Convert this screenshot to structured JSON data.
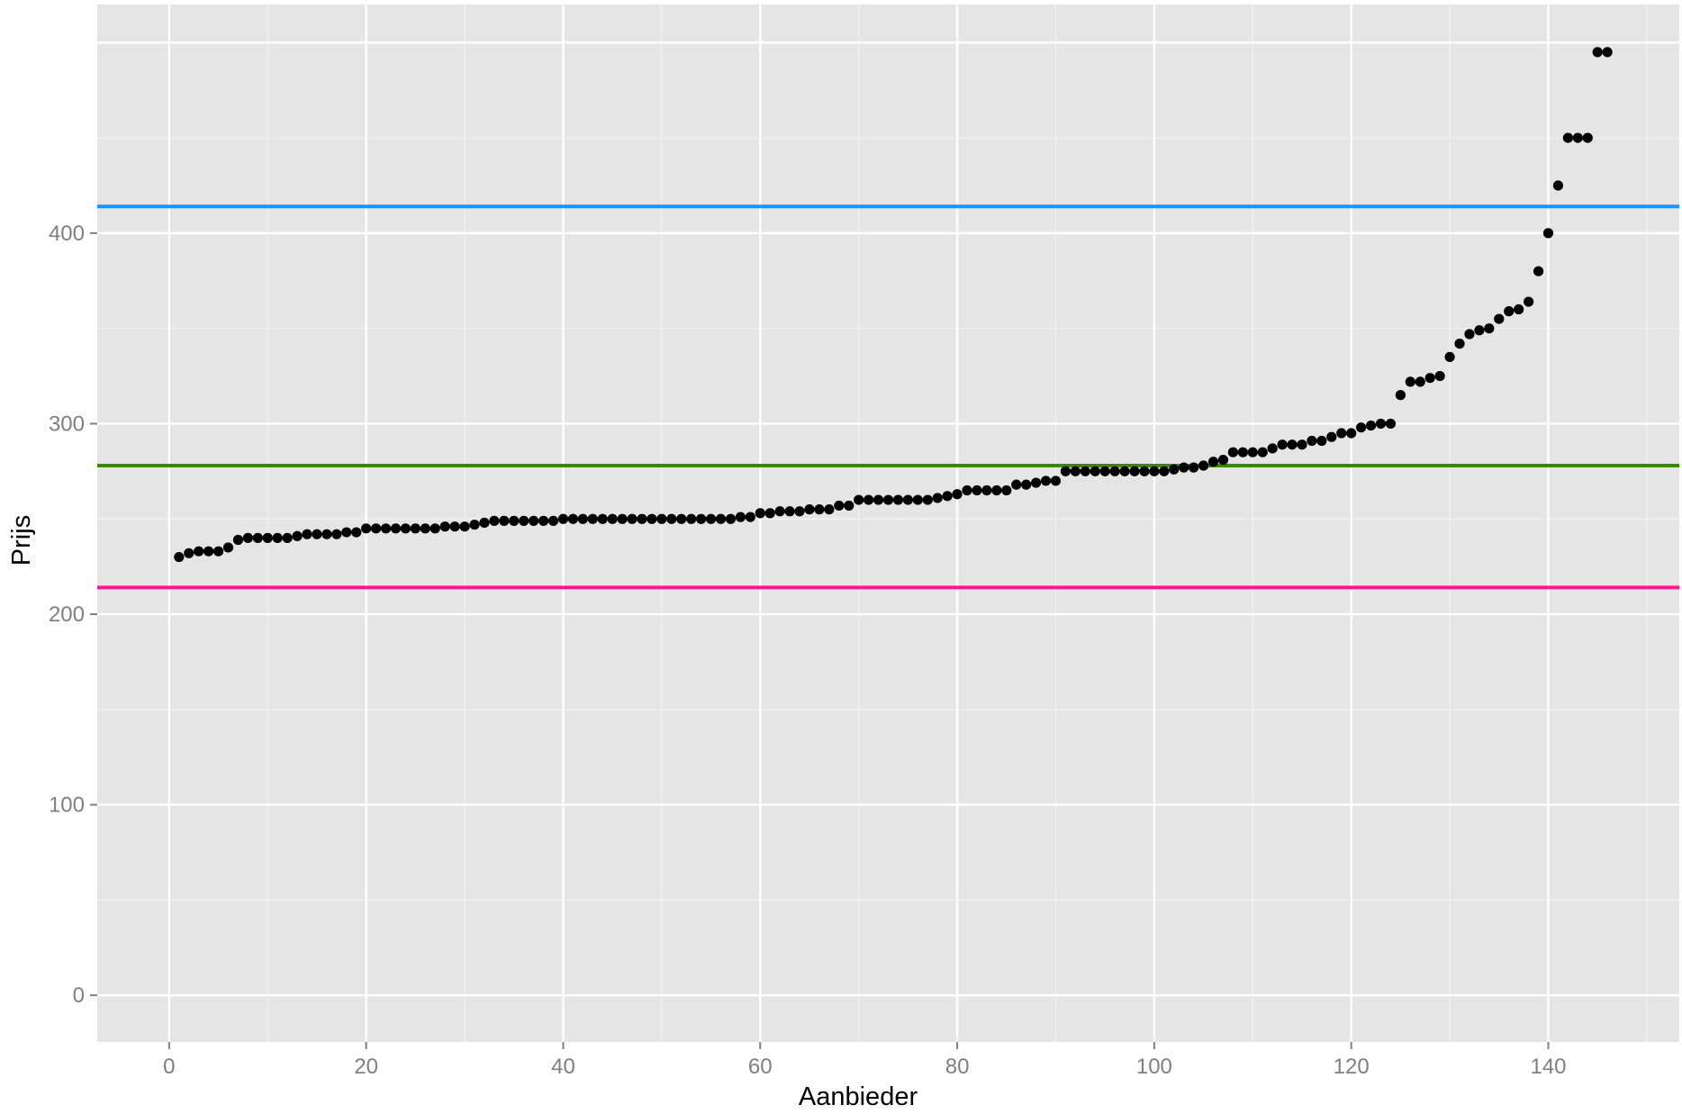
{
  "chart_data": {
    "type": "scatter",
    "title": "",
    "xlabel": "Aanbieder",
    "ylabel": "Prijs",
    "xlim": [
      -7.3,
      153.3
    ],
    "ylim": [
      -24.5,
      520
    ],
    "x_ticks": [
      0,
      20,
      40,
      60,
      80,
      100,
      120,
      140
    ],
    "y_ticks": [
      0,
      100,
      200,
      300,
      400
    ],
    "grid": true,
    "legend": "none",
    "colors": {
      "panel": "#e5e5e5",
      "grid_major": "#ffffff",
      "grid_minor": "#f2f2f2",
      "points": "#000000"
    },
    "hlines": [
      {
        "y": 414,
        "color": "#1e90ff"
      },
      {
        "y": 278,
        "color": "#3a8a00"
      },
      {
        "y": 214,
        "color": "#ff1493"
      }
    ],
    "series": [
      {
        "x": [
          1,
          2,
          3,
          4,
          5,
          6,
          7,
          8,
          9,
          10,
          11,
          12,
          13,
          14,
          15,
          16,
          17,
          18,
          19,
          20,
          21,
          22,
          23,
          24,
          25,
          26,
          27,
          28,
          29,
          30,
          31,
          32,
          33,
          34,
          35,
          36,
          37,
          38,
          39,
          40,
          41,
          42,
          43,
          44,
          45,
          46,
          47,
          48,
          49,
          50,
          51,
          52,
          53,
          54,
          55,
          56,
          57,
          58,
          59,
          60,
          61,
          62,
          63,
          64,
          65,
          66,
          67,
          68,
          69,
          70,
          71,
          72,
          73,
          74,
          75,
          76,
          77,
          78,
          79,
          80,
          81,
          82,
          83,
          84,
          85,
          86,
          87,
          88,
          89,
          90,
          91,
          92,
          93,
          94,
          95,
          96,
          97,
          98,
          99,
          100,
          101,
          102,
          103,
          104,
          105,
          106,
          107,
          108,
          109,
          110,
          111,
          112,
          113,
          114,
          115,
          116,
          117,
          118,
          119,
          120,
          121,
          122,
          123,
          124,
          125,
          126,
          127,
          128,
          129,
          130,
          131,
          132,
          133,
          134,
          135,
          136,
          137,
          138,
          139,
          140,
          141,
          142,
          143,
          144,
          145,
          146
        ],
        "y": [
          230,
          232,
          233,
          233,
          233,
          235,
          239,
          240,
          240,
          240,
          240,
          240,
          241,
          242,
          242,
          242,
          242,
          243,
          243,
          245,
          245,
          245,
          245,
          245,
          245,
          245,
          245,
          246,
          246,
          246,
          247,
          248,
          249,
          249,
          249,
          249,
          249,
          249,
          249,
          250,
          250,
          250,
          250,
          250,
          250,
          250,
          250,
          250,
          250,
          250,
          250,
          250,
          250,
          250,
          250,
          250,
          250,
          251,
          251,
          253,
          253,
          254,
          254,
          254,
          255,
          255,
          255,
          257,
          257,
          260,
          260,
          260,
          260,
          260,
          260,
          260,
          260,
          261,
          262,
          263,
          265,
          265,
          265,
          265,
          265,
          268,
          268,
          269,
          270,
          270,
          275,
          275,
          275,
          275,
          275,
          275,
          275,
          275,
          275,
          275,
          275,
          276,
          277,
          277,
          278,
          280,
          281,
          285,
          285,
          285,
          285,
          287,
          289,
          289,
          289,
          291,
          291,
          293,
          295,
          295,
          298,
          299,
          300,
          300,
          315,
          322,
          322,
          324,
          325,
          335,
          342,
          347,
          349,
          350,
          355,
          359,
          360,
          364,
          380,
          400,
          425,
          450,
          450,
          450,
          495,
          495
        ]
      }
    ]
  }
}
